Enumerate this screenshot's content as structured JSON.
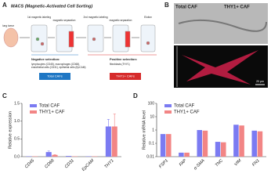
{
  "panel_labels": [
    "A",
    "B",
    "C",
    "D"
  ],
  "diagram": {
    "title": "MACS (Magnetic-Activated Cell Sorting)",
    "tissue": "lung tumor",
    "steps": [
      "1st magnetic labeling",
      "magnetic separation",
      "2nd magnetic labeling",
      "magnetic separation",
      "Elution"
    ],
    "negative": {
      "title": "Negative selection:",
      "lines": [
        "lymphocytes (CD45), macrophages (CD68),",
        "endothelial cells (CD31), epithelial cells (EpCAM)"
      ],
      "button": "Total CAFs"
    },
    "positive": {
      "title": "Positive selection:",
      "lines": [
        "fibroblasts (THY1)"
      ],
      "button": "THY1+ CAFs"
    }
  },
  "images": {
    "labels": [
      "Total CAF",
      "THY1+ CAF"
    ],
    "scale_bar": "20 μm"
  },
  "chart_data": [
    {
      "type": "bar",
      "ylabel": "Relative expression",
      "categories": [
        "CD45",
        "CD68",
        "CD31",
        "EpCAM",
        "THY1"
      ],
      "series": [
        {
          "name": "Total CAF",
          "color": "#7b7bf2",
          "values": [
            0.01,
            0.13,
            0.02,
            0.01,
            0.85
          ],
          "errors": [
            0,
            0.03,
            0,
            0,
            0.2
          ]
        },
        {
          "name": "THY1+ CAF",
          "color": "#f28585",
          "values": [
            0.01,
            0.05,
            0.01,
            0.01,
            0.85
          ],
          "errors": [
            0,
            0.01,
            0,
            0,
            0.35
          ]
        }
      ],
      "ylim": [
        0,
        1.5
      ],
      "yticks": [
        {
          "value": 0,
          "label": "0.0"
        },
        0.5,
        {
          "value": 1,
          "label": "1.0"
        },
        1.5
      ],
      "log_scale": false,
      "legend": "top-left"
    },
    {
      "type": "bar",
      "ylabel": "Relative mRNA level",
      "categories": [
        "FSP1",
        "FAP",
        "α-SMA",
        "TNC",
        "VIM",
        "FN1"
      ],
      "series": [
        {
          "name": "Total CAF",
          "color": "#7b7bf2",
          "values": [
            0.5,
            0.02,
            1.0,
            0.13,
            2.5,
            0.9
          ]
        },
        {
          "name": "THY1+ CAF",
          "color": "#f28585",
          "values": [
            0.5,
            0.02,
            0.9,
            0.12,
            2.2,
            0.8
          ]
        }
      ],
      "ylim": [
        0.01,
        100
      ],
      "yticks": [
        0.01,
        0.1,
        1,
        10,
        100
      ],
      "log_scale": true,
      "legend": "top-left"
    }
  ]
}
